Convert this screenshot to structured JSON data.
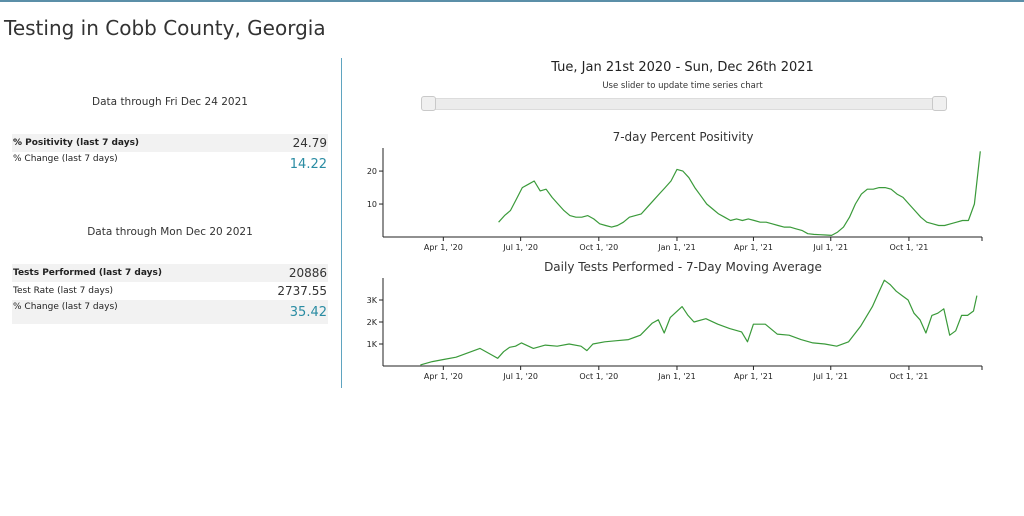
{
  "page": {
    "title": "Testing in Cobb County, Georgia"
  },
  "summary_positivity": {
    "caption": "Data through Fri Dec 24 2021",
    "rows": [
      {
        "label": "% Positivity (last 7 days)",
        "value": "24.79"
      },
      {
        "label": "% Change (last 7 days)",
        "value": "14.22"
      }
    ]
  },
  "summary_tests": {
    "caption": "Data through Mon Dec 20 2021",
    "rows": [
      {
        "label": "Tests Performed (last 7 days)",
        "value": "20886"
      },
      {
        "label": "Test Rate (last 7 days)",
        "value": "2737.55"
      },
      {
        "label": "% Change (last 7 days)",
        "value": "35.42"
      }
    ]
  },
  "date_range": {
    "title": "Tue, Jan 21st 2020 - Sun, Dec 26th 2021",
    "subtitle": "Use slider to update time series chart",
    "selection": [
      0,
      1
    ]
  },
  "colors": {
    "line": "#3a9a3a",
    "accent": "#2a8ca3",
    "divider": "#5fa4c0"
  },
  "chart_data": [
    {
      "type": "line",
      "title": "7-day Percent Positivity",
      "xlabel": "",
      "ylabel": "",
      "x_range": [
        "2020-01-21",
        "2021-12-26"
      ],
      "ylim": [
        0,
        27
      ],
      "x_ticks": [
        {
          "date": "2020-04-01",
          "label": "Apr 1, '20"
        },
        {
          "date": "2020-07-01",
          "label": "Jul 1, '20"
        },
        {
          "date": "2020-10-01",
          "label": "Oct 1, '20"
        },
        {
          "date": "2021-01-01",
          "label": "Jan 1, '21"
        },
        {
          "date": "2021-04-01",
          "label": "Apr 1, '21"
        },
        {
          "date": "2021-07-01",
          "label": "Jul 1, '21"
        },
        {
          "date": "2021-10-01",
          "label": "Oct 1, '21"
        }
      ],
      "y_ticks": [
        {
          "value": 10,
          "label": "10"
        },
        {
          "value": 20,
          "label": "20"
        }
      ],
      "series": [
        {
          "x": [
            "2020-06-05",
            "2020-06-12",
            "2020-06-19",
            "2020-06-26",
            "2020-07-03",
            "2020-07-10",
            "2020-07-17",
            "2020-07-24",
            "2020-07-31",
            "2020-08-07",
            "2020-08-14",
            "2020-08-21",
            "2020-08-28",
            "2020-09-04",
            "2020-09-11",
            "2020-09-18",
            "2020-09-25",
            "2020-10-02",
            "2020-10-09",
            "2020-10-16",
            "2020-10-23",
            "2020-10-30",
            "2020-11-06",
            "2020-11-13",
            "2020-11-20",
            "2020-11-27",
            "2020-12-04",
            "2020-12-11",
            "2020-12-18",
            "2020-12-25",
            "2021-01-01",
            "2021-01-08",
            "2021-01-15",
            "2021-01-22",
            "2021-01-29",
            "2021-02-05",
            "2021-02-12",
            "2021-02-19",
            "2021-02-26",
            "2021-03-05",
            "2021-03-12",
            "2021-03-19",
            "2021-03-26",
            "2021-04-02",
            "2021-04-09",
            "2021-04-16",
            "2021-04-23",
            "2021-04-30",
            "2021-05-07",
            "2021-05-14",
            "2021-05-21",
            "2021-05-28",
            "2021-06-04",
            "2021-06-11",
            "2021-06-18",
            "2021-06-25",
            "2021-07-02",
            "2021-07-09",
            "2021-07-16",
            "2021-07-23",
            "2021-07-30",
            "2021-08-06",
            "2021-08-13",
            "2021-08-20",
            "2021-08-27",
            "2021-09-03",
            "2021-09-10",
            "2021-09-17",
            "2021-09-24",
            "2021-10-01",
            "2021-10-08",
            "2021-10-15",
            "2021-10-22",
            "2021-10-29",
            "2021-11-05",
            "2021-11-12",
            "2021-11-19",
            "2021-11-26",
            "2021-12-03",
            "2021-12-10",
            "2021-12-17",
            "2021-12-24"
          ],
          "y": [
            4.5,
            6.5,
            8.0,
            11.5,
            15.0,
            16.0,
            17.0,
            14.0,
            14.5,
            12.0,
            10.0,
            8.0,
            6.5,
            6.0,
            6.0,
            6.5,
            5.5,
            4.0,
            3.5,
            3.0,
            3.5,
            4.5,
            6.0,
            6.5,
            7.0,
            9.0,
            11.0,
            13.0,
            15.0,
            17.0,
            20.5,
            20.0,
            18.0,
            15.0,
            12.5,
            10.0,
            8.5,
            7.0,
            6.0,
            5.0,
            5.5,
            5.0,
            5.5,
            5.0,
            4.5,
            4.5,
            4.0,
            3.5,
            3.0,
            3.0,
            2.5,
            2.0,
            1.0,
            0.8,
            0.7,
            0.6,
            0.5,
            1.5,
            3.0,
            6.0,
            10.0,
            13.0,
            14.5,
            14.5,
            15.0,
            15.0,
            14.5,
            13.0,
            12.0,
            10.0,
            8.0,
            6.0,
            4.5,
            4.0,
            3.5,
            3.5,
            4.0,
            4.5,
            5.0,
            5.0,
            10.0,
            26.0
          ]
        }
      ]
    },
    {
      "type": "line",
      "title": "Daily Tests Performed - 7-Day Moving Average",
      "xlabel": "",
      "ylabel": "",
      "x_range": [
        "2020-01-21",
        "2021-12-26"
      ],
      "ylim": [
        0,
        4000
      ],
      "x_ticks": [
        {
          "date": "2020-04-01",
          "label": "Apr 1, '20"
        },
        {
          "date": "2020-07-01",
          "label": "Jul 1, '20"
        },
        {
          "date": "2020-10-01",
          "label": "Oct 1, '20"
        },
        {
          "date": "2021-01-01",
          "label": "Jan 1, '21"
        },
        {
          "date": "2021-04-01",
          "label": "Apr 1, '21"
        },
        {
          "date": "2021-07-01",
          "label": "Jul 1, '21"
        },
        {
          "date": "2021-10-01",
          "label": "Oct 1, '21"
        }
      ],
      "y_ticks": [
        {
          "value": 1000,
          "label": "1K"
        },
        {
          "value": 2000,
          "label": "2K"
        },
        {
          "value": 3000,
          "label": "3K"
        }
      ],
      "series": [
        {
          "x": [
            "2020-03-05",
            "2020-03-19",
            "2020-04-02",
            "2020-04-16",
            "2020-04-30",
            "2020-05-14",
            "2020-05-28",
            "2020-06-04",
            "2020-06-11",
            "2020-06-18",
            "2020-06-25",
            "2020-07-02",
            "2020-07-16",
            "2020-07-30",
            "2020-08-13",
            "2020-08-27",
            "2020-09-10",
            "2020-09-17",
            "2020-09-24",
            "2020-10-08",
            "2020-10-22",
            "2020-11-05",
            "2020-11-19",
            "2020-12-03",
            "2020-12-10",
            "2020-12-17",
            "2020-12-24",
            "2021-01-07",
            "2021-01-14",
            "2021-01-21",
            "2021-02-04",
            "2021-02-18",
            "2021-03-04",
            "2021-03-18",
            "2021-03-25",
            "2021-04-01",
            "2021-04-15",
            "2021-04-29",
            "2021-05-13",
            "2021-05-27",
            "2021-06-10",
            "2021-06-24",
            "2021-07-08",
            "2021-07-22",
            "2021-08-05",
            "2021-08-19",
            "2021-08-26",
            "2021-09-02",
            "2021-09-09",
            "2021-09-16",
            "2021-09-23",
            "2021-09-30",
            "2021-10-07",
            "2021-10-14",
            "2021-10-21",
            "2021-10-28",
            "2021-11-04",
            "2021-11-11",
            "2021-11-18",
            "2021-11-25",
            "2021-12-02",
            "2021-12-09",
            "2021-12-16",
            "2021-12-20"
          ],
          "y": [
            50,
            200,
            300,
            400,
            600,
            800,
            500,
            350,
            650,
            850,
            900,
            1050,
            800,
            950,
            900,
            1000,
            900,
            700,
            1000,
            1100,
            1150,
            1200,
            1400,
            1950,
            2100,
            1500,
            2200,
            2700,
            2300,
            2000,
            2150,
            1900,
            1700,
            1550,
            1100,
            1900,
            1900,
            1450,
            1400,
            1200,
            1050,
            1000,
            900,
            1100,
            1800,
            2700,
            3300,
            3900,
            3700,
            3400,
            3200,
            3000,
            2400,
            2100,
            1500,
            2300,
            2400,
            2600,
            1400,
            1600,
            2300,
            2300,
            2500,
            3200
          ]
        }
      ]
    }
  ]
}
